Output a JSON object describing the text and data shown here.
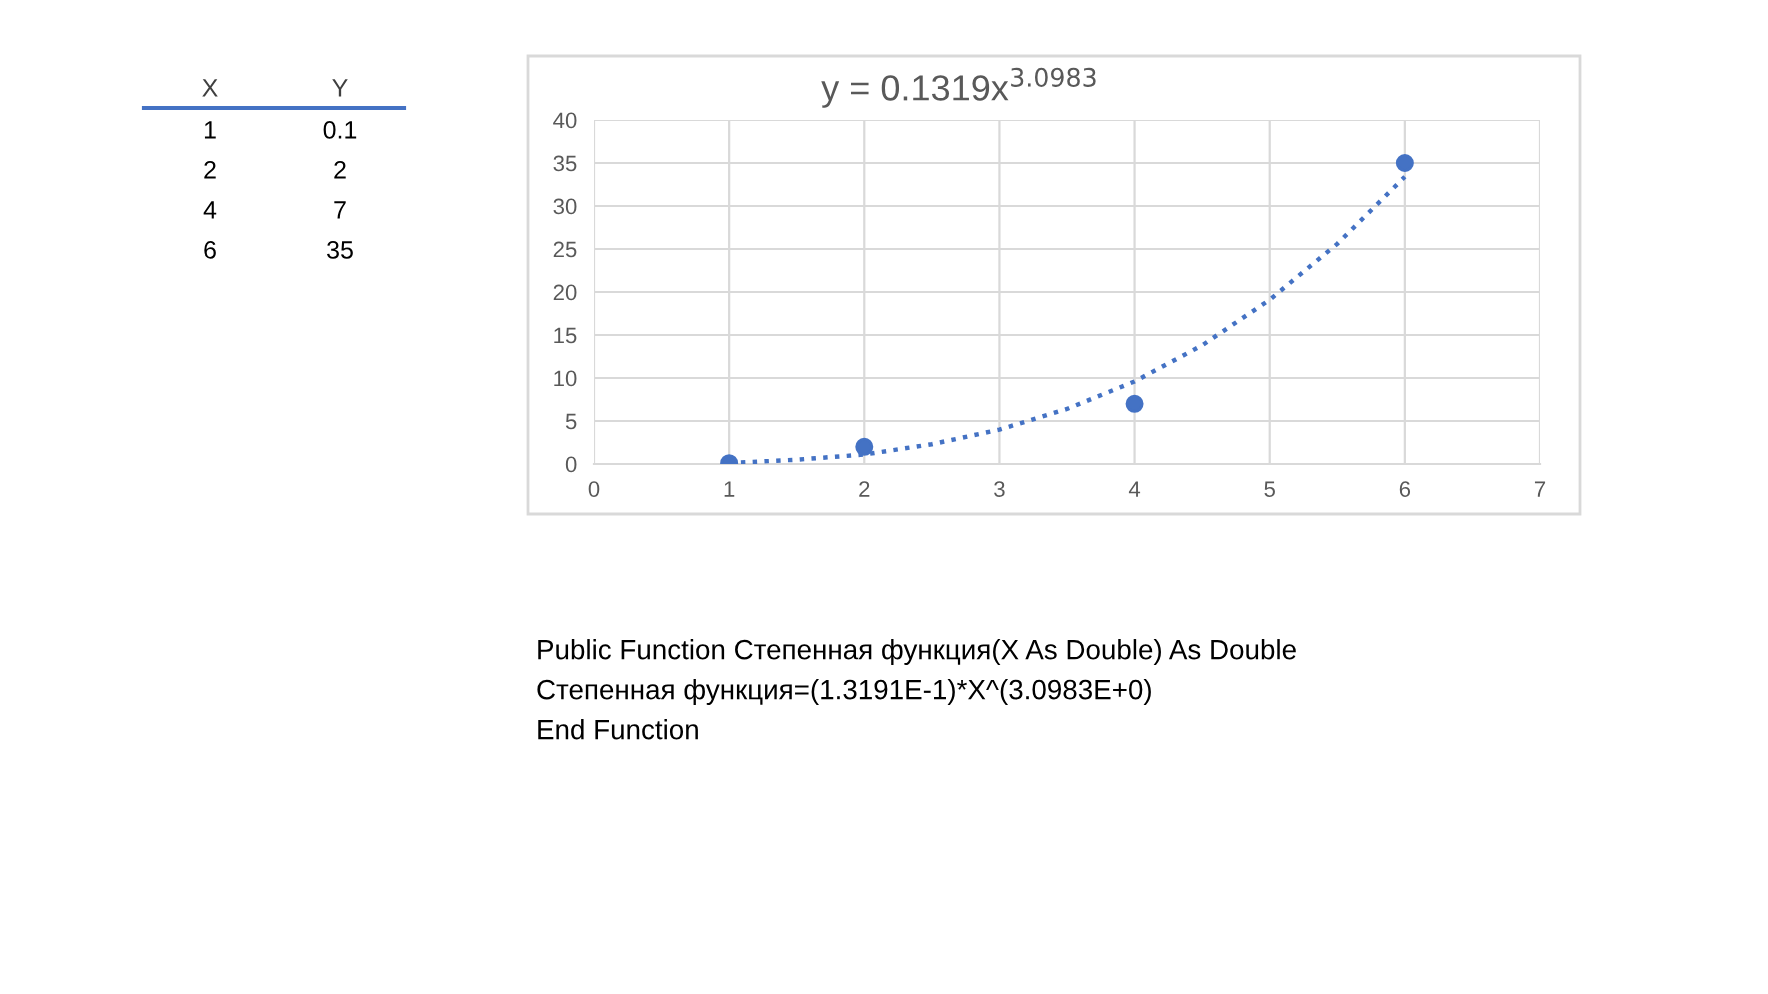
{
  "chart_data": {
    "type": "scatter",
    "title": "y = 0.1319x$^{3.0983}$",
    "series": [
      {
        "color": "#4472c4",
        "x": [
          1,
          2,
          4,
          6
        ],
        "values": [
          0.1,
          2,
          7,
          35
        ],
        "marker": "circle"
      },
      {
        "type": "line",
        "color": "#4472c4",
        "x": [
          1,
          1.5,
          2,
          2.5,
          3,
          3.5,
          4,
          4.5,
          5,
          5.5,
          6
        ],
        "values": [
          0.1,
          0.5,
          1.1,
          2.3,
          4.0,
          6.4,
          9.6,
          13.8,
          19.1,
          25.6,
          33.4
        ],
        "line_style": "dotted",
        "marker": "none"
      }
    ],
    "xlim": [
      0,
      7
    ],
    "xticks": [
      0,
      1,
      2,
      3,
      4,
      5,
      6,
      7
    ],
    "ylim": [
      0,
      40
    ],
    "yticks": [
      0,
      5,
      10,
      15,
      20,
      25,
      30,
      35,
      40
    ],
    "grid": true,
    "legend": false,
    "annotations": [
      "X",
      "Y",
      "1",
      "0.1",
      "2",
      "2",
      "4",
      "7",
      "6",
      "35",
      "Public Function Степенная функция(X As Double) As Double",
      "Степенная функция=(1.3191E-1)*X^(3.0983E+0)",
      "End Function"
    ]
  }
}
